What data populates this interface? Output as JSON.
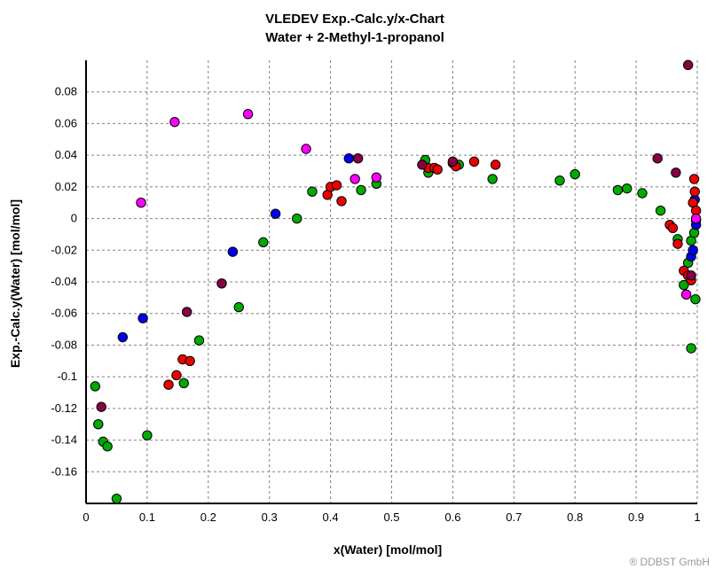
{
  "chart_data": {
    "type": "scatter",
    "title": "VLEDEV Exp.-Calc.y/x-Chart",
    "subtitle": "Water + 2-Methyl-1-propanol",
    "xlabel": "x(Water) [mol/mol]",
    "ylabel": "Exp.-Calc.y(Water) [mol/mol]",
    "xlim": [
      0,
      1
    ],
    "ylim": [
      -0.18,
      0.1
    ],
    "xticks": [
      "0",
      "0.1",
      "0.2",
      "0.3",
      "0.4",
      "0.5",
      "0.6",
      "0.7",
      "0.8",
      "0.9",
      "1"
    ],
    "yticks": [
      "0.08",
      "0.06",
      "0.04",
      "0.02",
      "0",
      "-0.02",
      "-0.04",
      "-0.06",
      "-0.08",
      "-0.1",
      "-0.12",
      "-0.14",
      "-0.16"
    ],
    "grid": true,
    "series": [
      {
        "color": "#00aa00",
        "points": [
          [
            0.015,
            -0.106
          ],
          [
            0.02,
            -0.13
          ],
          [
            0.028,
            -0.141
          ],
          [
            0.035,
            -0.144
          ],
          [
            0.05,
            -0.177
          ],
          [
            0.1,
            -0.137
          ],
          [
            0.16,
            -0.104
          ],
          [
            0.185,
            -0.077
          ],
          [
            0.25,
            -0.056
          ],
          [
            0.29,
            -0.015
          ],
          [
            0.345,
            0.0
          ],
          [
            0.37,
            0.017
          ],
          [
            0.45,
            0.018
          ],
          [
            0.475,
            0.022
          ],
          [
            0.555,
            0.037
          ],
          [
            0.56,
            0.029
          ],
          [
            0.61,
            0.034
          ],
          [
            0.665,
            0.025
          ],
          [
            0.775,
            0.024
          ],
          [
            0.8,
            0.028
          ],
          [
            0.87,
            0.018
          ],
          [
            0.885,
            0.019
          ],
          [
            0.91,
            0.016
          ],
          [
            0.94,
            0.005
          ],
          [
            0.968,
            -0.013
          ],
          [
            0.978,
            -0.042
          ],
          [
            0.985,
            -0.028
          ],
          [
            0.99,
            -0.082
          ],
          [
            0.99,
            -0.014
          ],
          [
            0.995,
            -0.009
          ],
          [
            0.997,
            -0.051
          ],
          [
            0.998,
            -0.001
          ]
        ]
      },
      {
        "color": "#0000ee",
        "points": [
          [
            0.06,
            -0.075
          ],
          [
            0.093,
            -0.063
          ],
          [
            0.24,
            -0.021
          ],
          [
            0.31,
            0.003
          ],
          [
            0.43,
            0.038
          ],
          [
            0.99,
            -0.024
          ],
          [
            0.993,
            -0.02
          ],
          [
            0.996,
            0.012
          ],
          [
            0.998,
            -0.004
          ]
        ]
      },
      {
        "color": "#ee0000",
        "points": [
          [
            0.135,
            -0.105
          ],
          [
            0.148,
            -0.099
          ],
          [
            0.158,
            -0.089
          ],
          [
            0.17,
            -0.09
          ],
          [
            0.395,
            0.015
          ],
          [
            0.4,
            0.02
          ],
          [
            0.41,
            0.021
          ],
          [
            0.418,
            0.011
          ],
          [
            0.56,
            0.032
          ],
          [
            0.57,
            0.032
          ],
          [
            0.575,
            0.031
          ],
          [
            0.6,
            0.035
          ],
          [
            0.605,
            0.033
          ],
          [
            0.635,
            0.036
          ],
          [
            0.67,
            0.034
          ],
          [
            0.955,
            -0.004
          ],
          [
            0.96,
            -0.006
          ],
          [
            0.968,
            -0.016
          ],
          [
            0.978,
            -0.033
          ],
          [
            0.985,
            -0.036
          ],
          [
            0.99,
            -0.039
          ],
          [
            0.993,
            0.01
          ],
          [
            0.995,
            0.025
          ],
          [
            0.996,
            0.017
          ],
          [
            0.998,
            0.005
          ]
        ]
      },
      {
        "color": "#880044",
        "points": [
          [
            0.025,
            -0.119
          ],
          [
            0.165,
            -0.059
          ],
          [
            0.222,
            -0.041
          ],
          [
            0.445,
            0.038
          ],
          [
            0.55,
            0.034
          ],
          [
            0.6,
            0.036
          ],
          [
            0.935,
            0.038
          ],
          [
            0.965,
            0.029
          ],
          [
            0.985,
            0.097
          ],
          [
            0.99,
            -0.036
          ]
        ]
      },
      {
        "color": "#ff00ff",
        "points": [
          [
            0.09,
            0.01
          ],
          [
            0.145,
            0.061
          ],
          [
            0.265,
            0.066
          ],
          [
            0.36,
            0.044
          ],
          [
            0.44,
            0.025
          ],
          [
            0.475,
            0.026
          ],
          [
            0.982,
            -0.048
          ],
          [
            0.998,
            0.0
          ]
        ]
      }
    ]
  },
  "copyright": "® DDBST GmbH"
}
